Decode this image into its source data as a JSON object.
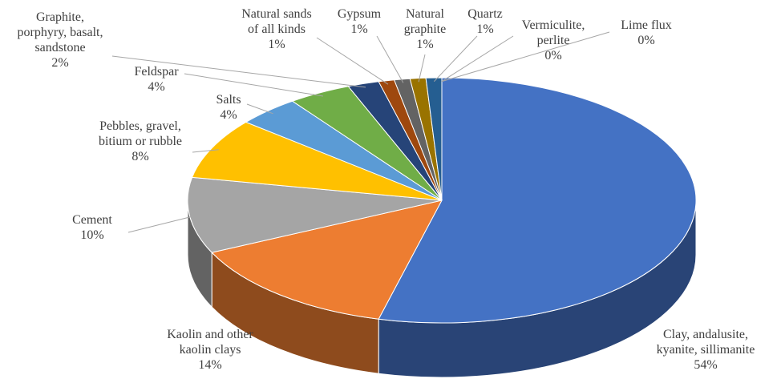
{
  "chart_data": {
    "type": "pie3d",
    "categories": [
      "Clay, andalusite, kyanite, sillimanite",
      "Kaolin and other kaolin clays",
      "Cement",
      "Pebbles, gravel, bitium or rubble",
      "Salts",
      "Feldspar",
      "Graphite, porphyry, basalt, sandstone",
      "Natural sands of all kinds",
      "Gypsum",
      "Natural graphite",
      "Quartz",
      "Vermiculite, perlite",
      "Lime flux"
    ],
    "values": [
      54,
      14,
      10,
      8,
      4,
      4,
      2,
      1,
      1,
      1,
      1,
      0,
      0
    ],
    "value_labels": [
      "54%",
      "14%",
      "10%",
      "8%",
      "4%",
      "4%",
      "2%",
      "1%",
      "1%",
      "1%",
      "1%",
      "0%",
      "0%"
    ],
    "colors": [
      "#4472c4",
      "#ed7d31",
      "#a5a5a5",
      "#ffc000",
      "#5b9bd5",
      "#70ad47",
      "#264478",
      "#9e480e",
      "#636363",
      "#997300",
      "#255e91",
      "#43682b",
      "#698ed0"
    ]
  }
}
